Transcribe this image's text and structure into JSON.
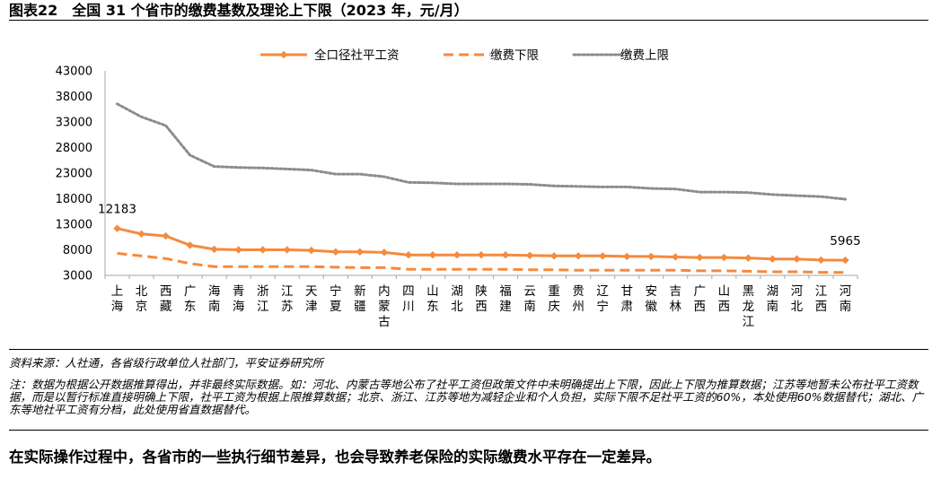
{
  "figure_title": "图表22　全国 31 个省市的缴费基数及理论上下限（2023 年，元/月）",
  "source": "资料来源：人社通，各省级行政单位人社部门，平安证券研究所",
  "note": "注：数据为根据公开数据推算得出，并非最终实际数据。如：河北、内蒙古等地公布了社平工资但政策文件中未明确提出上下限，因此上下限为推算数据；江苏等地暂未公布社平工资数据，而是以暂行标准直接明确上下限，社平工资为根据上限推算数据；北京、浙江、江苏等地为减轻企业和个人负担，实际下限不足社平工资的60%，本处使用60%数据替代；湖北、广东等地社平工资有分档，此处使用省直数据替代。",
  "conclusion": "在实际操作过程中，各省市的一些执行细节差异，也会导致养老保险的实际缴费水平存在一定差异。",
  "chart_data": {
    "type": "line",
    "title": "",
    "xlabel": "",
    "ylabel": "",
    "ylim": [
      3000,
      43000
    ],
    "yticks": [
      3000,
      8000,
      13000,
      18000,
      23000,
      28000,
      33000,
      38000,
      43000
    ],
    "grid": false,
    "legend_position": "top",
    "categories": [
      "上海",
      "北京",
      "西藏",
      "广东",
      "海南",
      "青海",
      "浙江",
      "江苏",
      "天津",
      "宁夏",
      "新疆",
      "内蒙古",
      "四川",
      "山东",
      "湖北",
      "陕西",
      "福建",
      "云南",
      "重庆",
      "贵州",
      "辽宁",
      "甘肃",
      "安徽",
      "吉林",
      "广西",
      "山西",
      "黑龙江",
      "湖南",
      "河北",
      "江西",
      "河南"
    ],
    "series": [
      {
        "name": "全口径社平工资",
        "style": "solid-marker",
        "color": "#F58A3E",
        "values": [
          12183,
          11100,
          10700,
          8900,
          8100,
          8000,
          8000,
          8000,
          7900,
          7600,
          7600,
          7500,
          7000,
          7000,
          7000,
          7000,
          7000,
          6900,
          6800,
          6800,
          6800,
          6700,
          6700,
          6600,
          6500,
          6500,
          6400,
          6200,
          6200,
          6000,
          5965
        ]
      },
      {
        "name": "缴费下限",
        "style": "dashed",
        "color": "#F58A3E",
        "values": [
          7310,
          6800,
          6300,
          5300,
          4700,
          4700,
          4700,
          4700,
          4700,
          4600,
          4500,
          4500,
          4200,
          4200,
          4200,
          4200,
          4200,
          4100,
          4100,
          4000,
          4000,
          4000,
          4000,
          4000,
          3900,
          3900,
          3800,
          3700,
          3700,
          3600,
          3580
        ]
      },
      {
        "name": "缴费上限",
        "style": "dotted",
        "color": "#8C8C8C",
        "values": [
          36550,
          34000,
          32300,
          26500,
          24300,
          24100,
          24000,
          23800,
          23600,
          22800,
          22800,
          22300,
          21200,
          21100,
          20900,
          20900,
          20900,
          20800,
          20500,
          20400,
          20300,
          20300,
          20000,
          19900,
          19300,
          19300,
          19200,
          18800,
          18600,
          18400,
          17895
        ]
      }
    ],
    "annotations": [
      {
        "text": "12183",
        "category": "上海",
        "series": "全口径社平工资"
      },
      {
        "text": "5965",
        "category": "河南",
        "series": "全口径社平工资"
      }
    ]
  }
}
